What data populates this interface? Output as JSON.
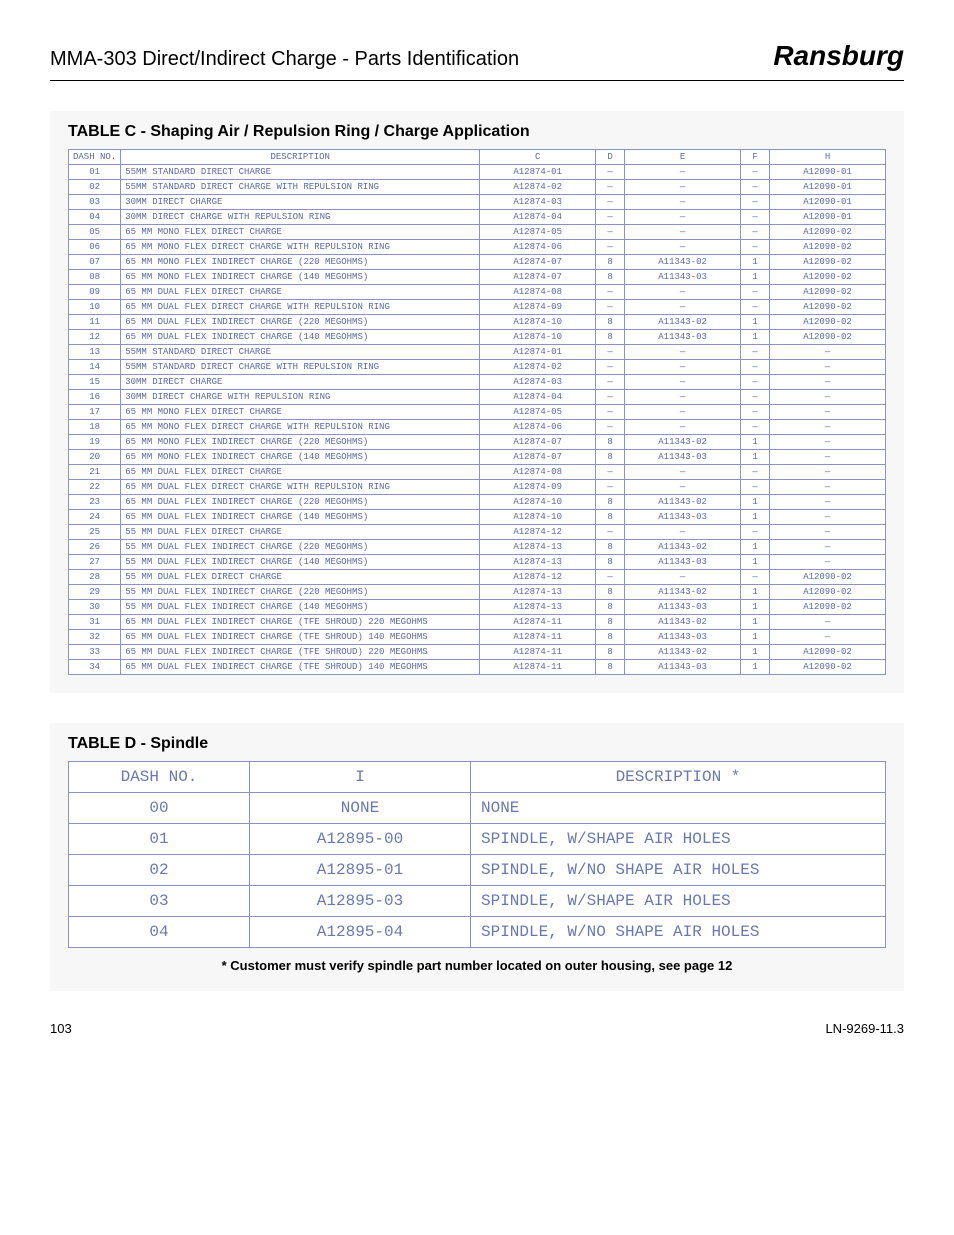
{
  "header": {
    "title": "MMA-303 Direct/Indirect Charge - Parts Identification",
    "brand": "Ransburg"
  },
  "tableC": {
    "caption": "TABLE C - Shaping Air / Repulsion Ring / Charge Application",
    "columns": [
      "DASH NO.",
      "DESCRIPTION",
      "C",
      "D",
      "E",
      "F",
      "H"
    ],
    "rows": [
      [
        "01",
        "55MM STANDARD DIRECT CHARGE",
        "A12874-01",
        "—",
        "—",
        "—",
        "A12090-01"
      ],
      [
        "02",
        "55MM STANDARD DIRECT CHARGE WITH REPULSION RING",
        "A12874-02",
        "—",
        "—",
        "—",
        "A12090-01"
      ],
      [
        "03",
        "30MM DIRECT CHARGE",
        "A12874-03",
        "—",
        "—",
        "—",
        "A12090-01"
      ],
      [
        "04",
        "30MM DIRECT CHARGE WITH REPULSION RING",
        "A12874-04",
        "—",
        "—",
        "—",
        "A12090-01"
      ],
      [
        "05",
        "65 MM MONO FLEX DIRECT CHARGE",
        "A12874-05",
        "—",
        "—",
        "—",
        "A12090-02"
      ],
      [
        "06",
        "65 MM MONO FLEX DIRECT CHARGE WITH REPULSION RING",
        "A12874-06",
        "—",
        "—",
        "—",
        "A12090-02"
      ],
      [
        "07",
        "65 MM MONO FLEX INDIRECT CHARGE (220 MEGOHMS)",
        "A12874-07",
        "8",
        "A11343-02",
        "1",
        "A12090-02"
      ],
      [
        "08",
        "65 MM MONO FLEX INDIRECT CHARGE (140 MEGOHMS)",
        "A12874-07",
        "8",
        "A11343-03",
        "1",
        "A12090-02"
      ],
      [
        "09",
        "65 MM DUAL FLEX DIRECT CHARGE",
        "A12874-08",
        "—",
        "—",
        "—",
        "A12090-02"
      ],
      [
        "10",
        "65 MM DUAL FLEX DIRECT CHARGE WITH REPULSION RING",
        "A12874-09",
        "—",
        "—",
        "—",
        "A12090-02"
      ],
      [
        "11",
        "65 MM DUAL FLEX INDIRECT CHARGE (220 MEGOHMS)",
        "A12874-10",
        "8",
        "A11343-02",
        "1",
        "A12090-02"
      ],
      [
        "12",
        "65 MM DUAL FLEX INDIRECT CHARGE (140 MEGOHMS)",
        "A12874-10",
        "8",
        "A11343-03",
        "1",
        "A12090-02"
      ],
      [
        "13",
        "55MM STANDARD DIRECT CHARGE",
        "A12874-01",
        "—",
        "—",
        "—",
        "—"
      ],
      [
        "14",
        "55MM STANDARD DIRECT CHARGE WITH REPULSION RING",
        "A12874-02",
        "—",
        "—",
        "—",
        "—"
      ],
      [
        "15",
        "30MM DIRECT CHARGE",
        "A12874-03",
        "—",
        "—",
        "—",
        "—"
      ],
      [
        "16",
        "30MM DIRECT CHARGE WITH REPULSION RING",
        "A12874-04",
        "—",
        "—",
        "—",
        "—"
      ],
      [
        "17",
        "65 MM MONO FLEX DIRECT CHARGE",
        "A12874-05",
        "—",
        "—",
        "—",
        "—"
      ],
      [
        "18",
        "65 MM MONO FLEX DIRECT CHARGE WITH REPULSION RING",
        "A12874-06",
        "—",
        "—",
        "—",
        "—"
      ],
      [
        "19",
        "65 MM MONO FLEX INDIRECT CHARGE (220 MEGOHMS)",
        "A12874-07",
        "8",
        "A11343-02",
        "1",
        "—"
      ],
      [
        "20",
        "65 MM MONO FLEX INDIRECT CHARGE (140 MEGOHMS)",
        "A12874-07",
        "8",
        "A11343-03",
        "1",
        "—"
      ],
      [
        "21",
        "65 MM DUAL FLEX DIRECT CHARGE",
        "A12874-08",
        "—",
        "—",
        "—",
        "—"
      ],
      [
        "22",
        "65 MM DUAL FLEX DIRECT CHARGE WITH REPULSION RING",
        "A12874-09",
        "—",
        "—",
        "—",
        "—"
      ],
      [
        "23",
        "65 MM DUAL FLEX INDIRECT CHARGE (220 MEGOHMS)",
        "A12874-10",
        "8",
        "A11343-02",
        "1",
        "—"
      ],
      [
        "24",
        "65 MM DUAL FLEX INDIRECT CHARGE (140 MEGOHMS)",
        "A12874-10",
        "8",
        "A11343-03",
        "1",
        "—"
      ],
      [
        "25",
        "55 MM DUAL FLEX DIRECT CHARGE",
        "A12874-12",
        "—",
        "—",
        "—",
        "—"
      ],
      [
        "26",
        "55 MM DUAL FLEX INDIRECT CHARGE (220 MEGOHMS)",
        "A12874-13",
        "8",
        "A11343-02",
        "1",
        "—"
      ],
      [
        "27",
        "55 MM DUAL FLEX INDIRECT CHARGE (140 MEGOHMS)",
        "A12874-13",
        "8",
        "A11343-03",
        "1",
        "—"
      ],
      [
        "28",
        "55 MM DUAL FLEX DIRECT CHARGE",
        "A12874-12",
        "—",
        "—",
        "—",
        "A12090-02"
      ],
      [
        "29",
        "55 MM DUAL FLEX INDIRECT CHARGE (220 MEGOHMS)",
        "A12874-13",
        "8",
        "A11343-02",
        "1",
        "A12090-02"
      ],
      [
        "30",
        "55 MM DUAL FLEX INDIRECT CHARGE (140 MEGOHMS)",
        "A12874-13",
        "8",
        "A11343-03",
        "1",
        "A12090-02"
      ],
      [
        "31",
        "65 MM DUAL FLEX INDIRECT CHARGE (TFE SHROUD) 220 MEGOHMS",
        "A12874-11",
        "8",
        "A11343-02",
        "1",
        "—"
      ],
      [
        "32",
        "65 MM DUAL FLEX INDIRECT CHARGE (TFE SHROUD) 140 MEGOHMS",
        "A12874-11",
        "8",
        "A11343-03",
        "1",
        "—"
      ],
      [
        "33",
        "65 MM DUAL FLEX INDIRECT CHARGE (TFE SHROUD) 220 MEGOHMS",
        "A12874-11",
        "8",
        "A11343-02",
        "1",
        "A12090-02"
      ],
      [
        "34",
        "65 MM DUAL FLEX INDIRECT CHARGE (TFE SHROUD) 140 MEGOHMS",
        "A12874-11",
        "8",
        "A11343-03",
        "1",
        "A12090-02"
      ]
    ]
  },
  "tableD": {
    "caption": "TABLE D - Spindle",
    "columns": [
      "DASH NO.",
      "I",
      "DESCRIPTION *"
    ],
    "rows": [
      [
        "00",
        "NONE",
        "NONE"
      ],
      [
        "01",
        "A12895-00",
        "SPINDLE, W/SHAPE AIR HOLES"
      ],
      [
        "02",
        "A12895-01",
        "SPINDLE, W/NO SHAPE AIR HOLES"
      ],
      [
        "03",
        "A12895-03",
        "SPINDLE, W/SHAPE AIR HOLES"
      ],
      [
        "04",
        "A12895-04",
        "SPINDLE, W/NO SHAPE AIR HOLES"
      ]
    ],
    "footnote": "* Customer must verify spindle part number located on outer housing, see page 12"
  },
  "footer": {
    "page": "103",
    "doc": "LN-9269-11.3"
  }
}
